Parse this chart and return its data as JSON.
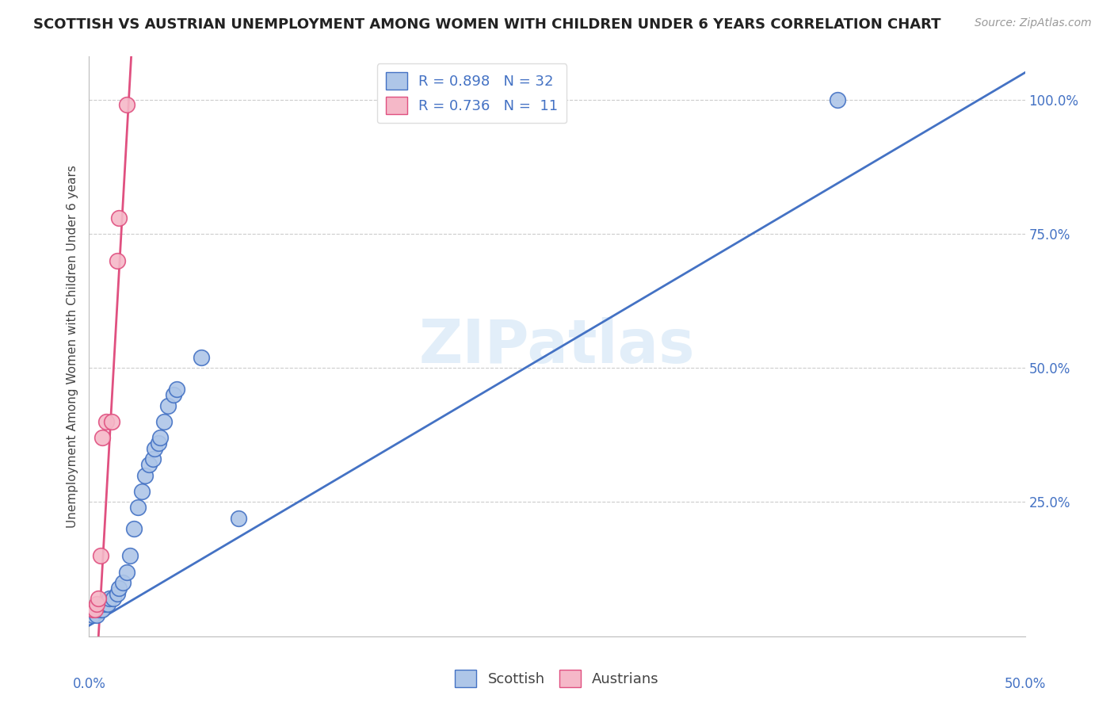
{
  "title": "SCOTTISH VS AUSTRIAN UNEMPLOYMENT AMONG WOMEN WITH CHILDREN UNDER 6 YEARS CORRELATION CHART",
  "source": "Source: ZipAtlas.com",
  "ylabel": "Unemployment Among Women with Children Under 6 years",
  "watermark": "ZIPatlas",
  "xlim": [
    0.0,
    0.5
  ],
  "ylim": [
    0.0,
    1.08
  ],
  "scottish_R": 0.898,
  "scottish_N": 32,
  "austrian_R": 0.736,
  "austrian_N": 11,
  "scottish_color": "#aec6e8",
  "austrian_color": "#f5b8c8",
  "scottish_line_color": "#4472c4",
  "austrian_line_color": "#e05080",
  "legend_text_color": "#4472c4",
  "scottish_points": [
    [
      0.002,
      0.04
    ],
    [
      0.003,
      0.05
    ],
    [
      0.004,
      0.04
    ],
    [
      0.005,
      0.05
    ],
    [
      0.006,
      0.05
    ],
    [
      0.007,
      0.05
    ],
    [
      0.008,
      0.06
    ],
    [
      0.009,
      0.06
    ],
    [
      0.01,
      0.06
    ],
    [
      0.011,
      0.07
    ],
    [
      0.013,
      0.07
    ],
    [
      0.015,
      0.08
    ],
    [
      0.016,
      0.09
    ],
    [
      0.018,
      0.1
    ],
    [
      0.02,
      0.12
    ],
    [
      0.022,
      0.15
    ],
    [
      0.024,
      0.2
    ],
    [
      0.026,
      0.24
    ],
    [
      0.028,
      0.27
    ],
    [
      0.03,
      0.3
    ],
    [
      0.032,
      0.32
    ],
    [
      0.034,
      0.33
    ],
    [
      0.035,
      0.35
    ],
    [
      0.037,
      0.36
    ],
    [
      0.038,
      0.37
    ],
    [
      0.04,
      0.4
    ],
    [
      0.042,
      0.43
    ],
    [
      0.045,
      0.45
    ],
    [
      0.047,
      0.46
    ],
    [
      0.06,
      0.52
    ],
    [
      0.08,
      0.22
    ],
    [
      0.4,
      1.0
    ]
  ],
  "austrian_points": [
    [
      0.002,
      0.05
    ],
    [
      0.003,
      0.05
    ],
    [
      0.004,
      0.06
    ],
    [
      0.005,
      0.07
    ],
    [
      0.006,
      0.15
    ],
    [
      0.007,
      0.37
    ],
    [
      0.009,
      0.4
    ],
    [
      0.012,
      0.4
    ],
    [
      0.015,
      0.7
    ],
    [
      0.016,
      0.78
    ],
    [
      0.02,
      0.99
    ]
  ],
  "background_color": "#ffffff",
  "grid_color": "#cccccc",
  "title_fontsize": 13,
  "source_fontsize": 10,
  "label_fontsize": 11,
  "tick_fontsize": 12,
  "legend_fontsize": 13
}
